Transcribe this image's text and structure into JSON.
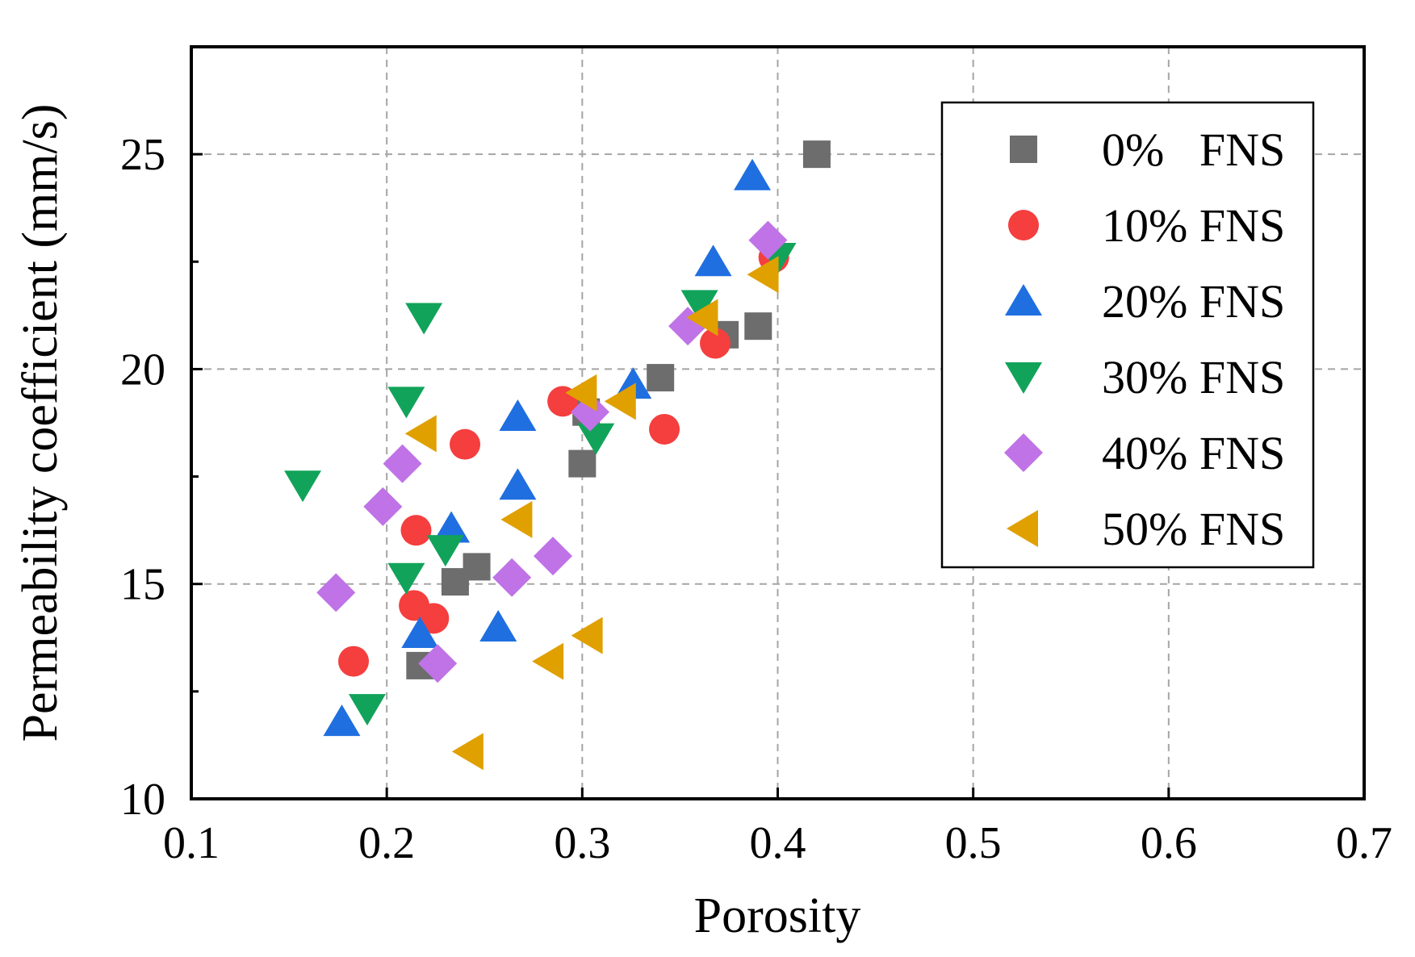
{
  "chart_data": {
    "type": "scatter",
    "title": "",
    "xlabel": "Porosity",
    "ylabel": "Permeability coefficient (mm/s)",
    "xlim": [
      0.1,
      0.7
    ],
    "ylim": [
      10,
      27.5
    ],
    "x_ticks": [
      0.1,
      0.2,
      0.3,
      0.4,
      0.5,
      0.6,
      0.7
    ],
    "x_tick_labels": [
      "0.1",
      "0.2",
      "0.3",
      "0.4",
      "0.5",
      "0.6",
      "0.7"
    ],
    "y_ticks": [
      10,
      15,
      20,
      25
    ],
    "y_tick_labels": [
      "10",
      "15",
      "20",
      "25"
    ],
    "grid": true,
    "legend_position": "top-right",
    "series": [
      {
        "name": "0% FNS",
        "legend_label": "0%   FNS",
        "marker": "square",
        "color": "#6d6d6d",
        "points": [
          [
            0.217,
            13.1
          ],
          [
            0.235,
            15.05
          ],
          [
            0.246,
            15.4
          ],
          [
            0.3,
            17.8
          ],
          [
            0.302,
            19.0
          ],
          [
            0.34,
            19.8
          ],
          [
            0.373,
            20.8
          ],
          [
            0.39,
            21.0
          ],
          [
            0.42,
            25.0
          ]
        ]
      },
      {
        "name": "10% FNS",
        "legend_label": "10% FNS",
        "marker": "circle",
        "color": "#f53e3e",
        "points": [
          [
            0.183,
            13.2
          ],
          [
            0.214,
            14.5
          ],
          [
            0.224,
            14.2
          ],
          [
            0.215,
            16.25
          ],
          [
            0.24,
            18.25
          ],
          [
            0.29,
            19.25
          ],
          [
            0.342,
            18.6
          ],
          [
            0.368,
            20.6
          ],
          [
            0.398,
            22.6
          ]
        ]
      },
      {
        "name": "20% FNS",
        "legend_label": "20% FNS",
        "marker": "triangle-up",
        "color": "#1f6fe0",
        "points": [
          [
            0.177,
            11.8
          ],
          [
            0.217,
            13.85
          ],
          [
            0.233,
            16.3
          ],
          [
            0.257,
            14.0
          ],
          [
            0.267,
            17.3
          ],
          [
            0.267,
            18.9
          ],
          [
            0.326,
            19.65
          ],
          [
            0.367,
            22.5
          ],
          [
            0.387,
            24.5
          ]
        ]
      },
      {
        "name": "30% FNS",
        "legend_label": "30% FNS",
        "marker": "triangle-down",
        "color": "#12a35a",
        "points": [
          [
            0.157,
            17.3
          ],
          [
            0.19,
            12.1
          ],
          [
            0.21,
            15.15
          ],
          [
            0.21,
            19.25
          ],
          [
            0.219,
            21.2
          ],
          [
            0.23,
            15.8
          ],
          [
            0.307,
            18.4
          ],
          [
            0.36,
            21.5
          ],
          [
            0.4,
            22.6
          ]
        ]
      },
      {
        "name": "40% FNS",
        "legend_label": "40% FNS",
        "marker": "diamond",
        "color": "#bf73e6",
        "points": [
          [
            0.174,
            14.8
          ],
          [
            0.198,
            16.8
          ],
          [
            0.208,
            17.8
          ],
          [
            0.226,
            13.15
          ],
          [
            0.264,
            15.15
          ],
          [
            0.285,
            15.65
          ],
          [
            0.304,
            19.0
          ],
          [
            0.354,
            21.0
          ],
          [
            0.395,
            23.0
          ]
        ]
      },
      {
        "name": "50% FNS",
        "legend_label": "50% FNS",
        "marker": "triangle-left",
        "color": "#e0a000",
        "points": [
          [
            0.218,
            18.5
          ],
          [
            0.242,
            11.1
          ],
          [
            0.267,
            16.5
          ],
          [
            0.283,
            13.2
          ],
          [
            0.303,
            13.8
          ],
          [
            0.3,
            19.45
          ],
          [
            0.32,
            19.25
          ],
          [
            0.362,
            21.2
          ],
          [
            0.393,
            22.2
          ]
        ]
      }
    ]
  }
}
